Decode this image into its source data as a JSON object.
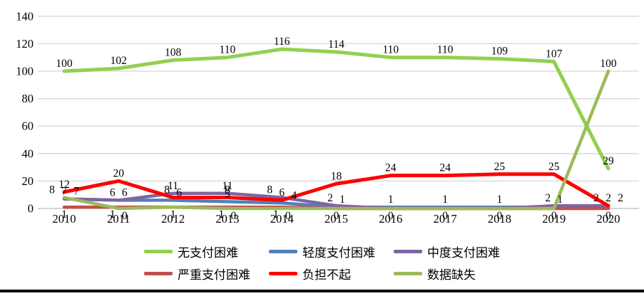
{
  "chart_data": {
    "type": "line",
    "title": "",
    "xlabel": "",
    "ylabel": "",
    "x_labels": [
      "2010",
      "2011",
      "2012",
      "2013",
      "2014",
      "2015",
      "2016",
      "2017",
      "2018",
      "2019",
      "2020"
    ],
    "ylim": [
      0,
      140
    ],
    "ytick_step": 20,
    "yticks": [
      0,
      20,
      40,
      60,
      80,
      100,
      120,
      140
    ],
    "grid": true,
    "legend_position": "bottom",
    "series": [
      {
        "key": "no-difficulty",
        "name": "无支付困难",
        "color": "#92D050",
        "values": [
          100,
          102,
          108,
          110,
          116,
          114,
          110,
          110,
          109,
          107,
          29
        ],
        "labels": [
          100,
          102,
          108,
          110,
          116,
          114,
          110,
          110,
          109,
          107,
          29
        ]
      },
      {
        "key": "mild-difficulty",
        "name": "轻度支付困难",
        "color": "#4F81BD",
        "values": [
          7,
          6,
          6,
          5,
          4,
          1,
          1,
          1,
          1,
          1,
          2
        ],
        "labels": [
          7,
          6,
          6,
          5,
          4,
          1,
          1,
          1,
          1,
          1,
          2
        ]
      },
      {
        "key": "moderate-difficulty",
        "name": "中度支付困难",
        "color": "#8064A2",
        "values": [
          7,
          6,
          11,
          11,
          8,
          2,
          0,
          0,
          0,
          2,
          2
        ],
        "labels": [
          7,
          6,
          11,
          11,
          8,
          2,
          null,
          null,
          null,
          2,
          2
        ]
      },
      {
        "key": "severe-difficulty",
        "name": "严重支付困难",
        "color": "#C0504D",
        "values": [
          1,
          1,
          1,
          1,
          1,
          0,
          0,
          0,
          0,
          0,
          0
        ],
        "labels": [
          1,
          1,
          1,
          1,
          1,
          0,
          0,
          0,
          0,
          0,
          0
        ]
      },
      {
        "key": "cannot-afford",
        "name": "负担不起",
        "color": "#FF0000",
        "values": [
          12,
          20,
          8,
          8,
          6,
          18,
          24,
          24,
          25,
          25,
          2
        ],
        "labels": [
          12,
          20,
          8,
          8,
          6,
          18,
          24,
          24,
          25,
          25,
          2
        ]
      },
      {
        "key": "missing-data",
        "name": "数据缺失",
        "color": "#9BBB59",
        "values": [
          8,
          0,
          1,
          0,
          0,
          0,
          0,
          0,
          0,
          0,
          100
        ],
        "labels": [
          8,
          0,
          null,
          0,
          0,
          null,
          null,
          null,
          null,
          null,
          100
        ]
      }
    ]
  },
  "colors": {
    "grid": "#D6D6D6",
    "axis_line": "#BFBFBF",
    "tick_text": "#000000",
    "data_label_text": "#000000",
    "background": "#FFFFFF",
    "bottom_border": "#000000"
  }
}
